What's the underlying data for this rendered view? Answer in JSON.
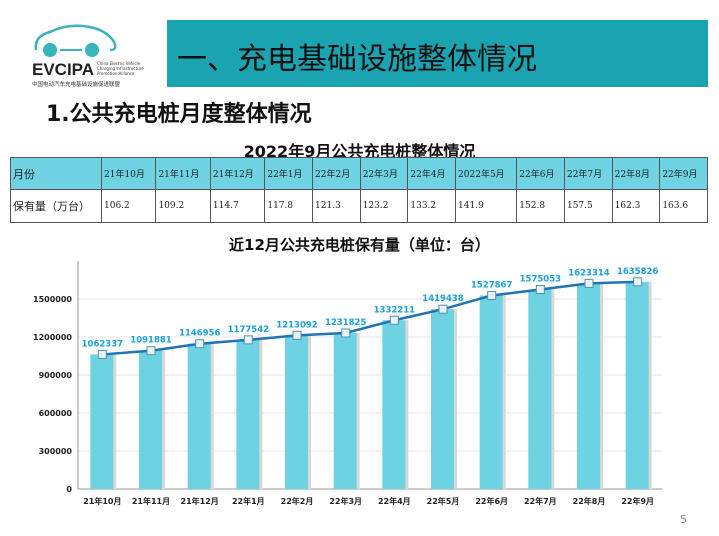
{
  "logo": {
    "brand": "EVCIPA",
    "english": "China Electric Vehicle Charging Infrastructure Promotion Alliance",
    "chinese": "中国电动汽车充电基础设施促进联盟"
  },
  "header": {
    "title": "一、充电基础设施整体情况"
  },
  "section": {
    "title": "1.公共充电桩月度整体情况"
  },
  "table": {
    "title": "2022年9月公共充电桩整体情况",
    "row_headers": [
      "月份",
      "保有量（万台）"
    ],
    "months": [
      "21年10月",
      "21年11月",
      "21年12月",
      "22年1月",
      "22年2月",
      "22年3月",
      "22年4月",
      "2022年5月",
      "22年6月",
      "22年7月",
      "22年8月",
      "22年9月"
    ],
    "values": [
      "106.2",
      "109.2",
      "114.7",
      "117.8",
      "121.3",
      "123.2",
      "133.2",
      "141.9",
      "152.8",
      "157.5",
      "162.3",
      "163.6"
    ]
  },
  "chart_data": {
    "type": "bar",
    "title": "近12月公共充电桩保有量（单位：台）",
    "categories": [
      "21年10月",
      "21年11月",
      "21年12月",
      "22年1月",
      "22年2月",
      "22年3月",
      "22年4月",
      "22年5月",
      "22年6月",
      "22年7月",
      "22年8月",
      "22年9月"
    ],
    "values": [
      1062337,
      1091881,
      1146956,
      1177542,
      1213092,
      1231825,
      1332211,
      1419438,
      1527867,
      1575053,
      1623314,
      1635826
    ],
    "yticks": [
      0,
      300000,
      600000,
      900000,
      1200000,
      1500000
    ],
    "ylim": [
      0,
      1800000
    ],
    "grid": true,
    "colors": {
      "bar": "#6dd3e2",
      "line": "#1f73b7",
      "label": "#1aa0e0"
    }
  },
  "page_number": "5"
}
